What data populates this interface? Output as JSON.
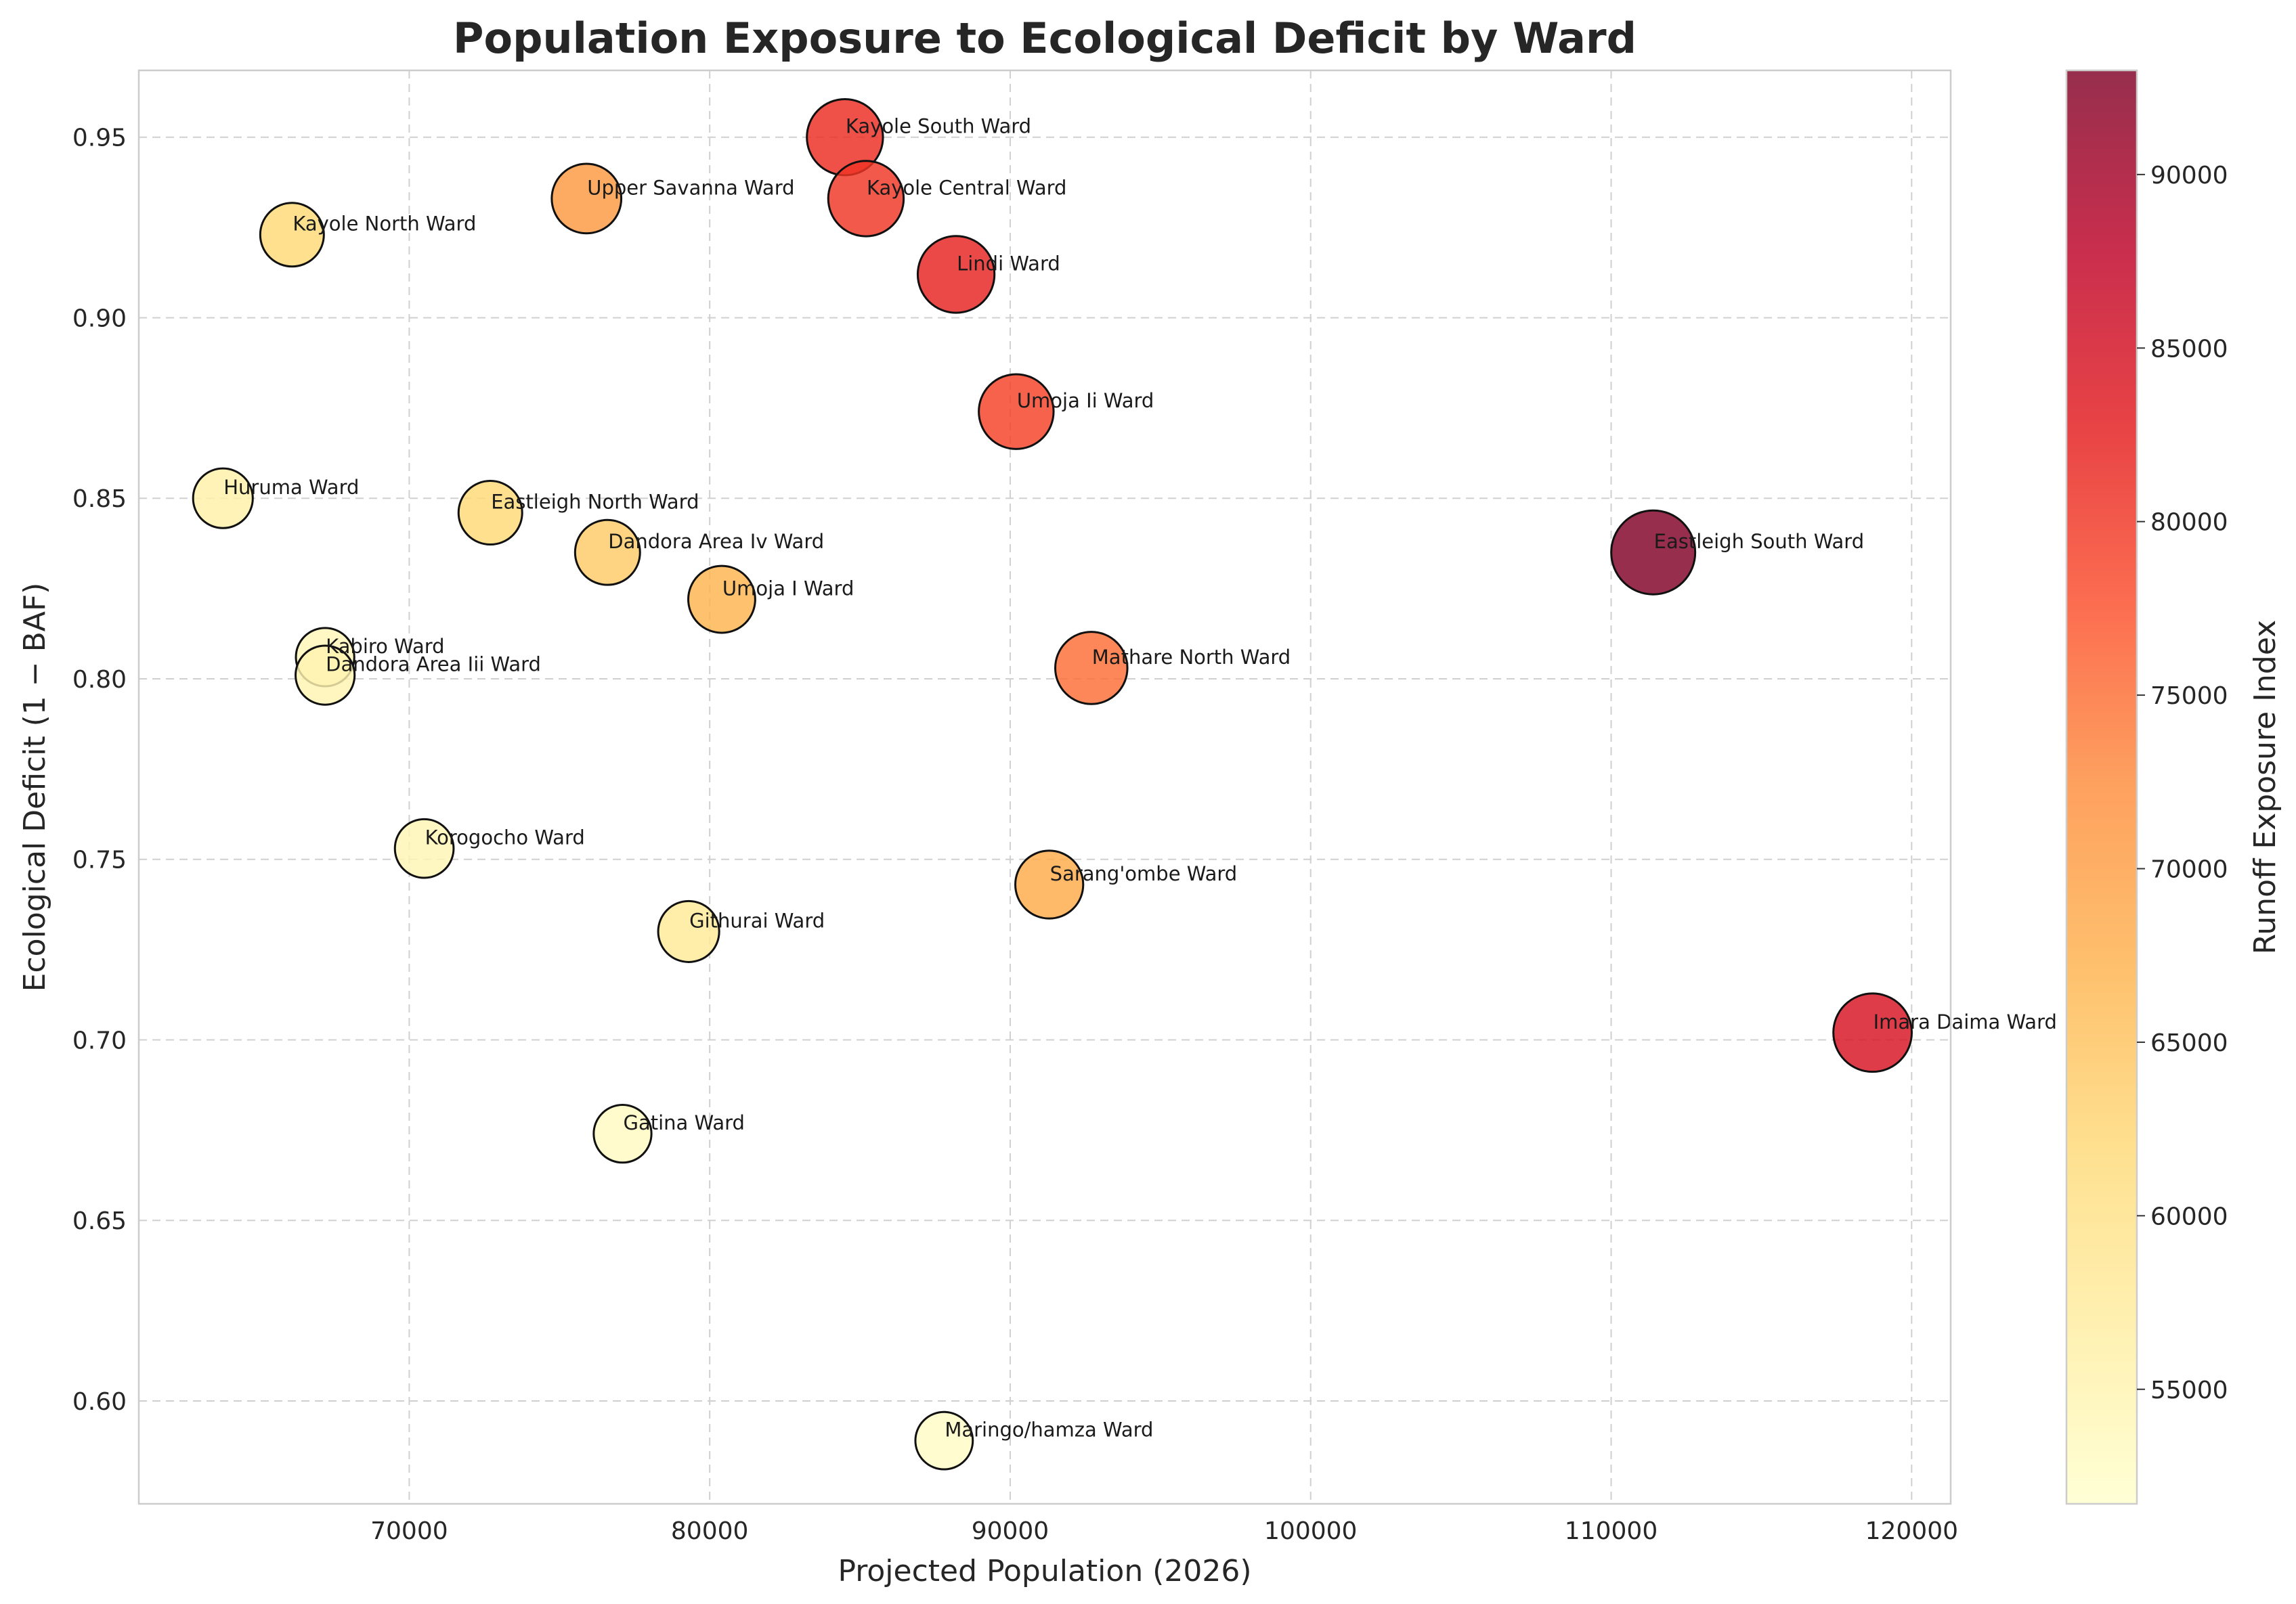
{
  "chart_data": {
    "type": "scatter",
    "title": "Population Exposure to Ecological Deficit by Ward",
    "xlabel": "Projected Population (2026)",
    "ylabel": "Ecological Deficit (1 − BAF)",
    "colorbar_label": "Runoff Exposure Index",
    "xlim": [
      61000,
      121300
    ],
    "ylim": [
      0.5715,
      0.9685
    ],
    "x_ticks": [
      70000,
      80000,
      90000,
      100000,
      110000,
      120000
    ],
    "y_ticks": [
      0.6,
      0.65,
      0.7,
      0.75,
      0.8,
      0.85,
      0.9,
      0.95
    ],
    "colorbar_range": [
      51700,
      93000
    ],
    "colorbar_ticks": [
      55000,
      60000,
      65000,
      70000,
      75000,
      80000,
      85000,
      90000
    ],
    "grid": true,
    "colormap": [
      "#ffffcc",
      "#ffeda0",
      "#fed976",
      "#feb24c",
      "#fd8d3c",
      "#fc4e2a",
      "#e31a1c",
      "#bd0026",
      "#800026"
    ],
    "points": [
      {
        "label": "Kayole South Ward",
        "x": 84500,
        "y": 0.95,
        "c": 81000
      },
      {
        "label": "Upper Savanna Ward",
        "x": 75900,
        "y": 0.933,
        "c": 71000
      },
      {
        "label": "Kayole Central Ward",
        "x": 85200,
        "y": 0.933,
        "c": 80000
      },
      {
        "label": "Kayole North Ward",
        "x": 66100,
        "y": 0.923,
        "c": 62000
      },
      {
        "label": "Lindi Ward",
        "x": 88200,
        "y": 0.912,
        "c": 82000
      },
      {
        "label": "Umoja Ii Ward",
        "x": 90200,
        "y": 0.874,
        "c": 79000
      },
      {
        "label": "Huruma Ward",
        "x": 63800,
        "y": 0.85,
        "c": 56000
      },
      {
        "label": "Eastleigh North Ward",
        "x": 72700,
        "y": 0.846,
        "c": 62000
      },
      {
        "label": "Eastleigh South Ward",
        "x": 111400,
        "y": 0.835,
        "c": 93000
      },
      {
        "label": "Dandora Area Iv Ward",
        "x": 76600,
        "y": 0.835,
        "c": 64000
      },
      {
        "label": "Umoja I Ward",
        "x": 80400,
        "y": 0.822,
        "c": 67000
      },
      {
        "label": "Kabiro Ward",
        "x": 67200,
        "y": 0.806,
        "c": 54000
      },
      {
        "label": "Mathare North Ward",
        "x": 92700,
        "y": 0.803,
        "c": 75000
      },
      {
        "label": "Dandora Area Iii Ward",
        "x": 67200,
        "y": 0.801,
        "c": 55000
      },
      {
        "label": "Korogocho Ward",
        "x": 70500,
        "y": 0.753,
        "c": 54500
      },
      {
        "label": "Sarang'ombe Ward",
        "x": 91300,
        "y": 0.743,
        "c": 68500
      },
      {
        "label": "Githurai Ward",
        "x": 79300,
        "y": 0.73,
        "c": 58000
      },
      {
        "label": "Imara Daima Ward",
        "x": 118700,
        "y": 0.702,
        "c": 84500
      },
      {
        "label": "Gatina Ward",
        "x": 77100,
        "y": 0.674,
        "c": 53000
      },
      {
        "label": "Maringo/hamza Ward",
        "x": 87800,
        "y": 0.589,
        "c": 52500
      }
    ]
  }
}
